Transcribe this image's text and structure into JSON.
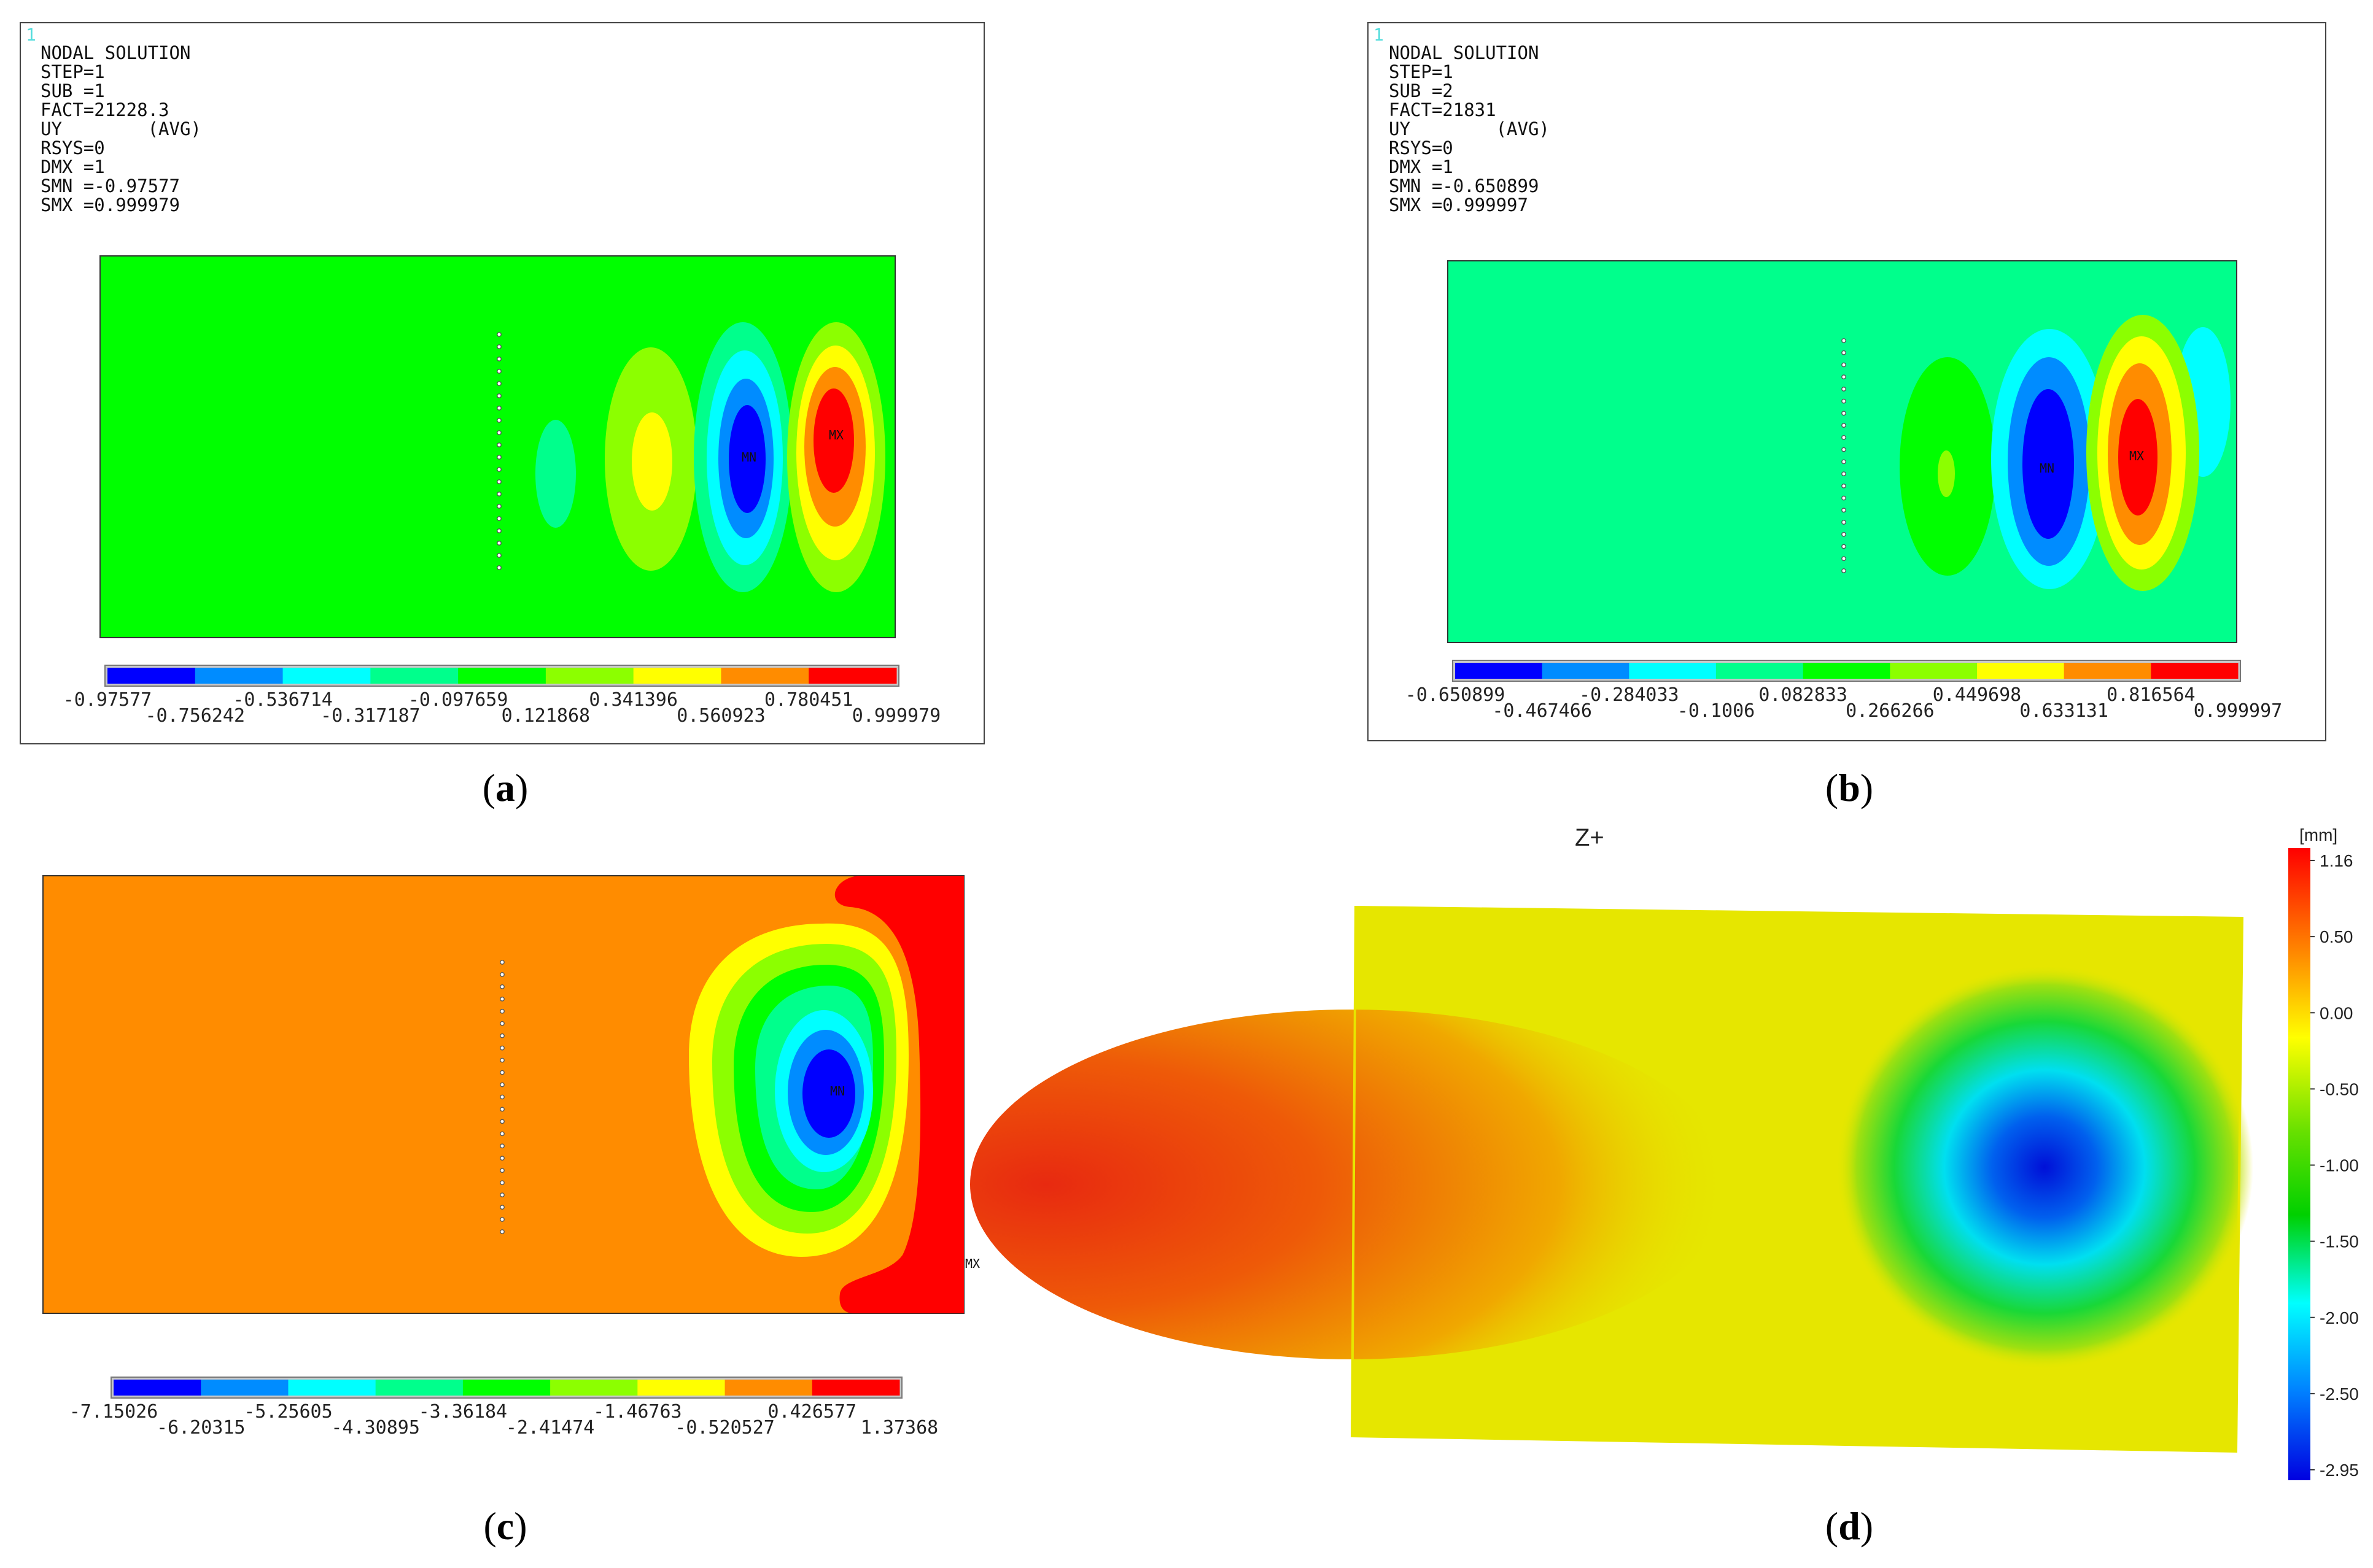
{
  "legend_colors": [
    "#0000ff",
    "#008cff",
    "#00ffff",
    "#00ff8c",
    "#00ff00",
    "#8cff00",
    "#ffff00",
    "#ff8c00",
    "#ff0000"
  ],
  "panels": {
    "a": {
      "caption": "a",
      "window_index": "1",
      "info": [
        "NODAL SOLUTION",
        "STEP=1",
        "SUB =1",
        "FACT=21228.3",
        "UY        (AVG)",
        "RSYS=0",
        "DMX =1",
        "SMN =-0.97577",
        "SMX =0.999979"
      ],
      "legend_top": [
        "-0.97577",
        "-0.536714",
        "-0.097659",
        "0.341396",
        "0.780451"
      ],
      "legend_bottom": [
        "-0.756242",
        "-0.317187",
        "0.121868",
        "0.560923",
        "0.999979"
      ],
      "min_label": "MN",
      "max_label": "MX"
    },
    "b": {
      "caption": "b",
      "window_index": "1",
      "info": [
        "NODAL SOLUTION",
        "STEP=1",
        "SUB =2",
        "FACT=21831",
        "UY        (AVG)",
        "RSYS=0",
        "DMX =1",
        "SMN =-0.650899",
        "SMX =0.999997"
      ],
      "legend_top": [
        "-0.650899",
        "-0.284033",
        "0.082833",
        "0.449698",
        "0.816564"
      ],
      "legend_bottom": [
        "-0.467466",
        "-0.1006",
        "0.266266",
        "0.633131",
        "0.999997"
      ],
      "min_label": "MN",
      "max_label": "MX"
    },
    "c": {
      "caption": "c",
      "legend_top": [
        "-7.15026",
        "-5.25605",
        "-3.36184",
        "-1.46763",
        "0.426577"
      ],
      "legend_bottom": [
        "-6.20315",
        "-4.30895",
        "-2.41474",
        "-0.520527",
        "1.37368"
      ],
      "min_label": "MN",
      "max_label": "MX"
    },
    "d": {
      "caption": "d",
      "view_label": "Z+",
      "unit": "[mm]",
      "scale_ticks": [
        "1.16",
        "0.50",
        "0.00",
        "-0.50",
        "-1.00",
        "-1.50",
        "-2.00",
        "-2.50",
        "-2.95"
      ]
    }
  }
}
